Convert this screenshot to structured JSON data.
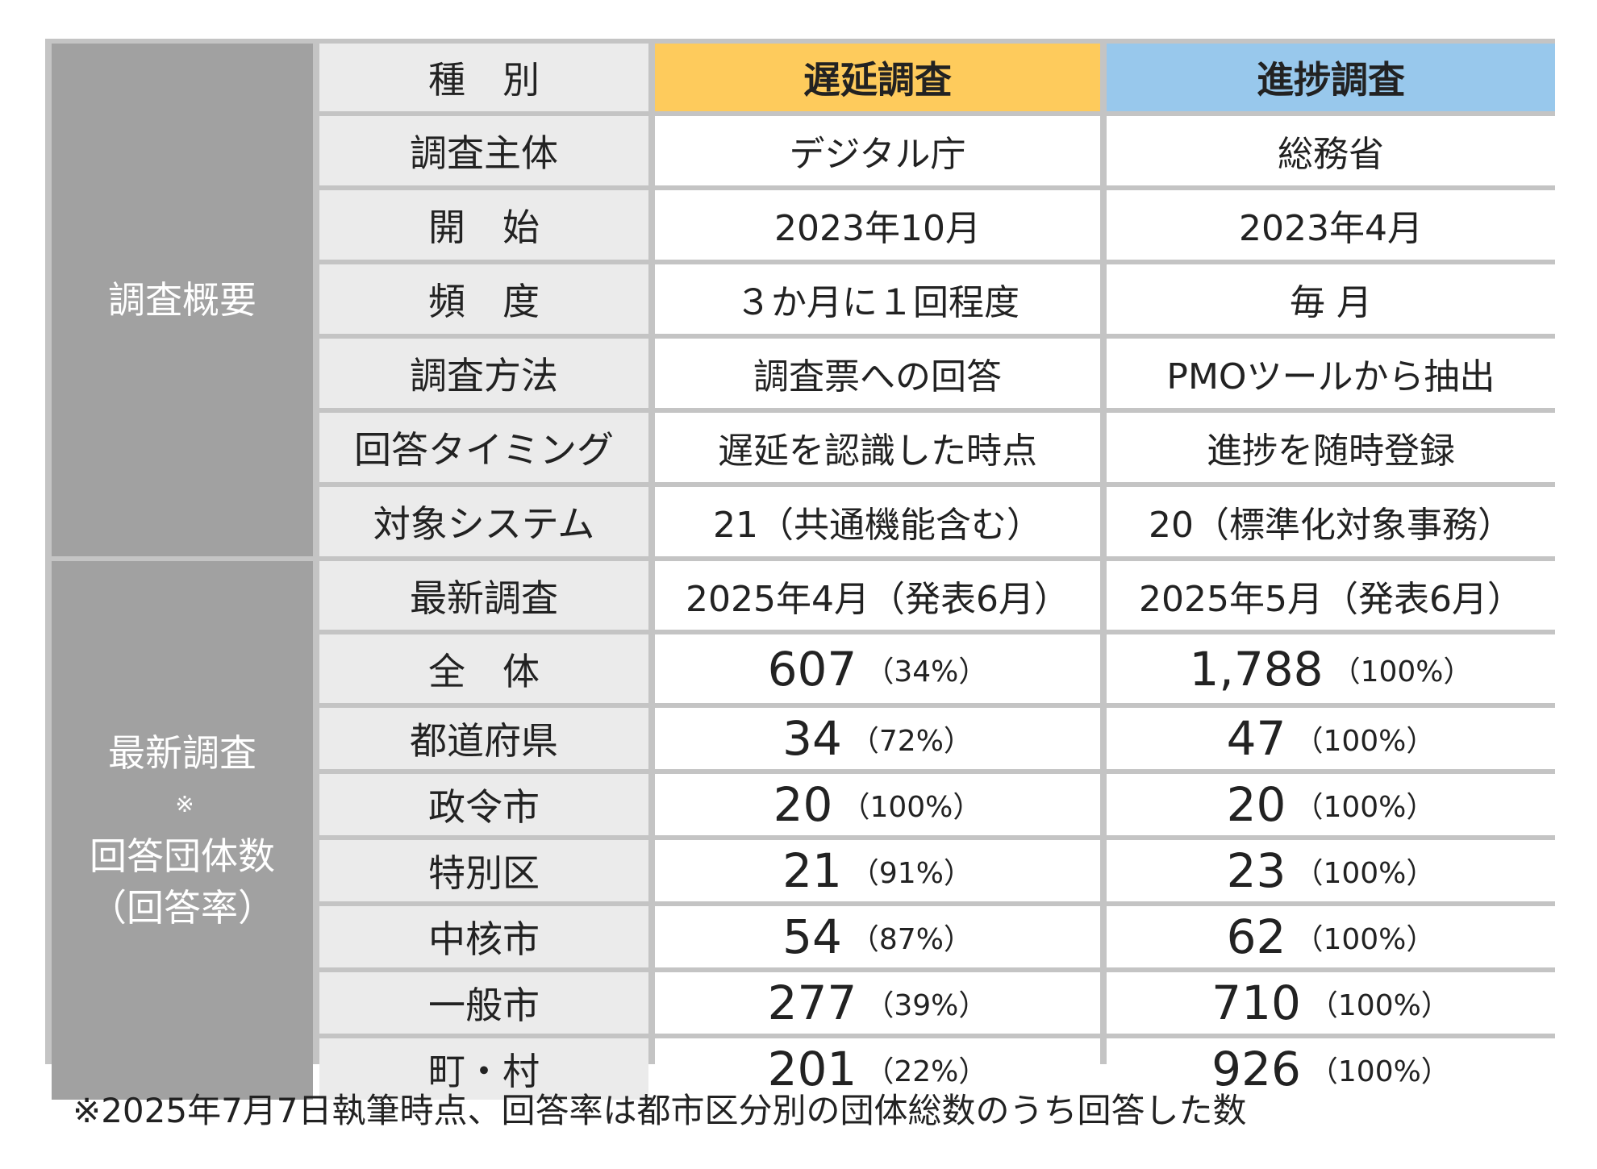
{
  "header": {
    "type_label": "種　別",
    "delay_survey": "遅延調査",
    "progress_survey": "進捗調査"
  },
  "overview": {
    "group_label": "調査概要",
    "rows": [
      {
        "label": "調査主体",
        "delay": "デジタル庁",
        "progress": "総務省"
      },
      {
        "label": "開　始",
        "delay": "2023年10月",
        "progress": "2023年4月"
      },
      {
        "label": "頻　度",
        "delay": "３か月に１回程度",
        "progress": "毎 月"
      },
      {
        "label": "調査方法",
        "delay": "調査票への回答",
        "progress": "PMOツールから抽出"
      },
      {
        "label": "回答タイミング",
        "delay": "遅延を認識した時点",
        "progress": "進捗を随時登録"
      },
      {
        "label": "対象システム",
        "delay": "21（共通機能含む）",
        "progress": "20（標準化対象事務）"
      }
    ]
  },
  "results": {
    "group_label_line1": "最新調査",
    "group_label_mark": "※",
    "group_label_line2": "回答団体数",
    "group_label_line3": "（回答率）",
    "latest": {
      "label": "最新調査",
      "delay": "2025年4月（発表6月）",
      "progress": "2025年5月（発表6月）"
    },
    "rows": [
      {
        "label": "全　体",
        "delay_count": "607",
        "delay_rate": "（34%）",
        "progress_count": "1,788",
        "progress_rate": "（100%）"
      },
      {
        "label": "都道府県",
        "delay_count": "34",
        "delay_rate": "（72%）",
        "progress_count": "47",
        "progress_rate": "（100%）"
      },
      {
        "label": "政令市",
        "delay_count": "20",
        "delay_rate": "（100%）",
        "progress_count": "20",
        "progress_rate": "（100%）"
      },
      {
        "label": "特別区",
        "delay_count": "21",
        "delay_rate": "（91%）",
        "progress_count": "23",
        "progress_rate": "（100%）"
      },
      {
        "label": "中核市",
        "delay_count": "54",
        "delay_rate": "（87%）",
        "progress_count": "62",
        "progress_rate": "（100%）"
      },
      {
        "label": "一般市",
        "delay_count": "277",
        "delay_rate": "（39%）",
        "progress_count": "710",
        "progress_rate": "（100%）"
      },
      {
        "label": "町・村",
        "delay_count": "201",
        "delay_rate": "（22%）",
        "progress_count": "926",
        "progress_rate": "（100%）"
      }
    ]
  },
  "footnote": "※2025年7月7日執筆時点、回答率は都市区分別の団体総数のうち回答した数",
  "colors": {
    "group_bg": "#a1a1a1",
    "label_bg": "#ebebeb",
    "delay_header": "#fecb5c",
    "progress_header": "#98c8ec",
    "grid_line": "#c4c4c4"
  }
}
